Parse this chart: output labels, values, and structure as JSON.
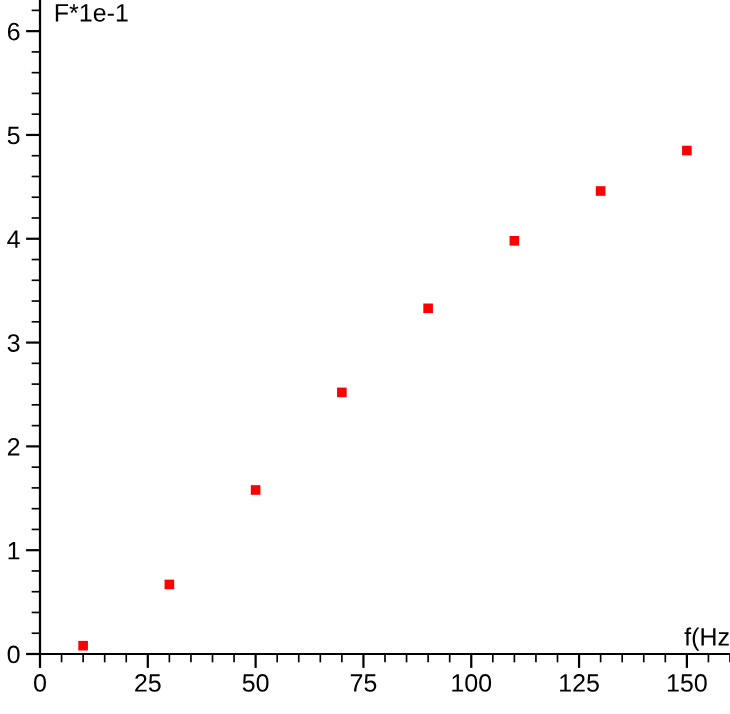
{
  "chart_data": {
    "type": "scatter",
    "xlabel": "f(Hz",
    "ylabel": "F*1e-1",
    "x": [
      10,
      30,
      50,
      70,
      90,
      110,
      130,
      150
    ],
    "series": [
      {
        "color": "#ff0000",
        "values": [
          0.08,
          0.67,
          1.58,
          2.52,
          3.33,
          3.98,
          4.46,
          4.85
        ]
      }
    ],
    "marker": "square",
    "grid": false,
    "legend": false,
    "xlim": [
      0,
      160
    ],
    "ylim": [
      0,
      6.3
    ],
    "xticks": [
      0,
      25,
      50,
      75,
      100,
      125,
      150
    ],
    "yticks": [
      0,
      1,
      2,
      3,
      4,
      5,
      6
    ]
  }
}
